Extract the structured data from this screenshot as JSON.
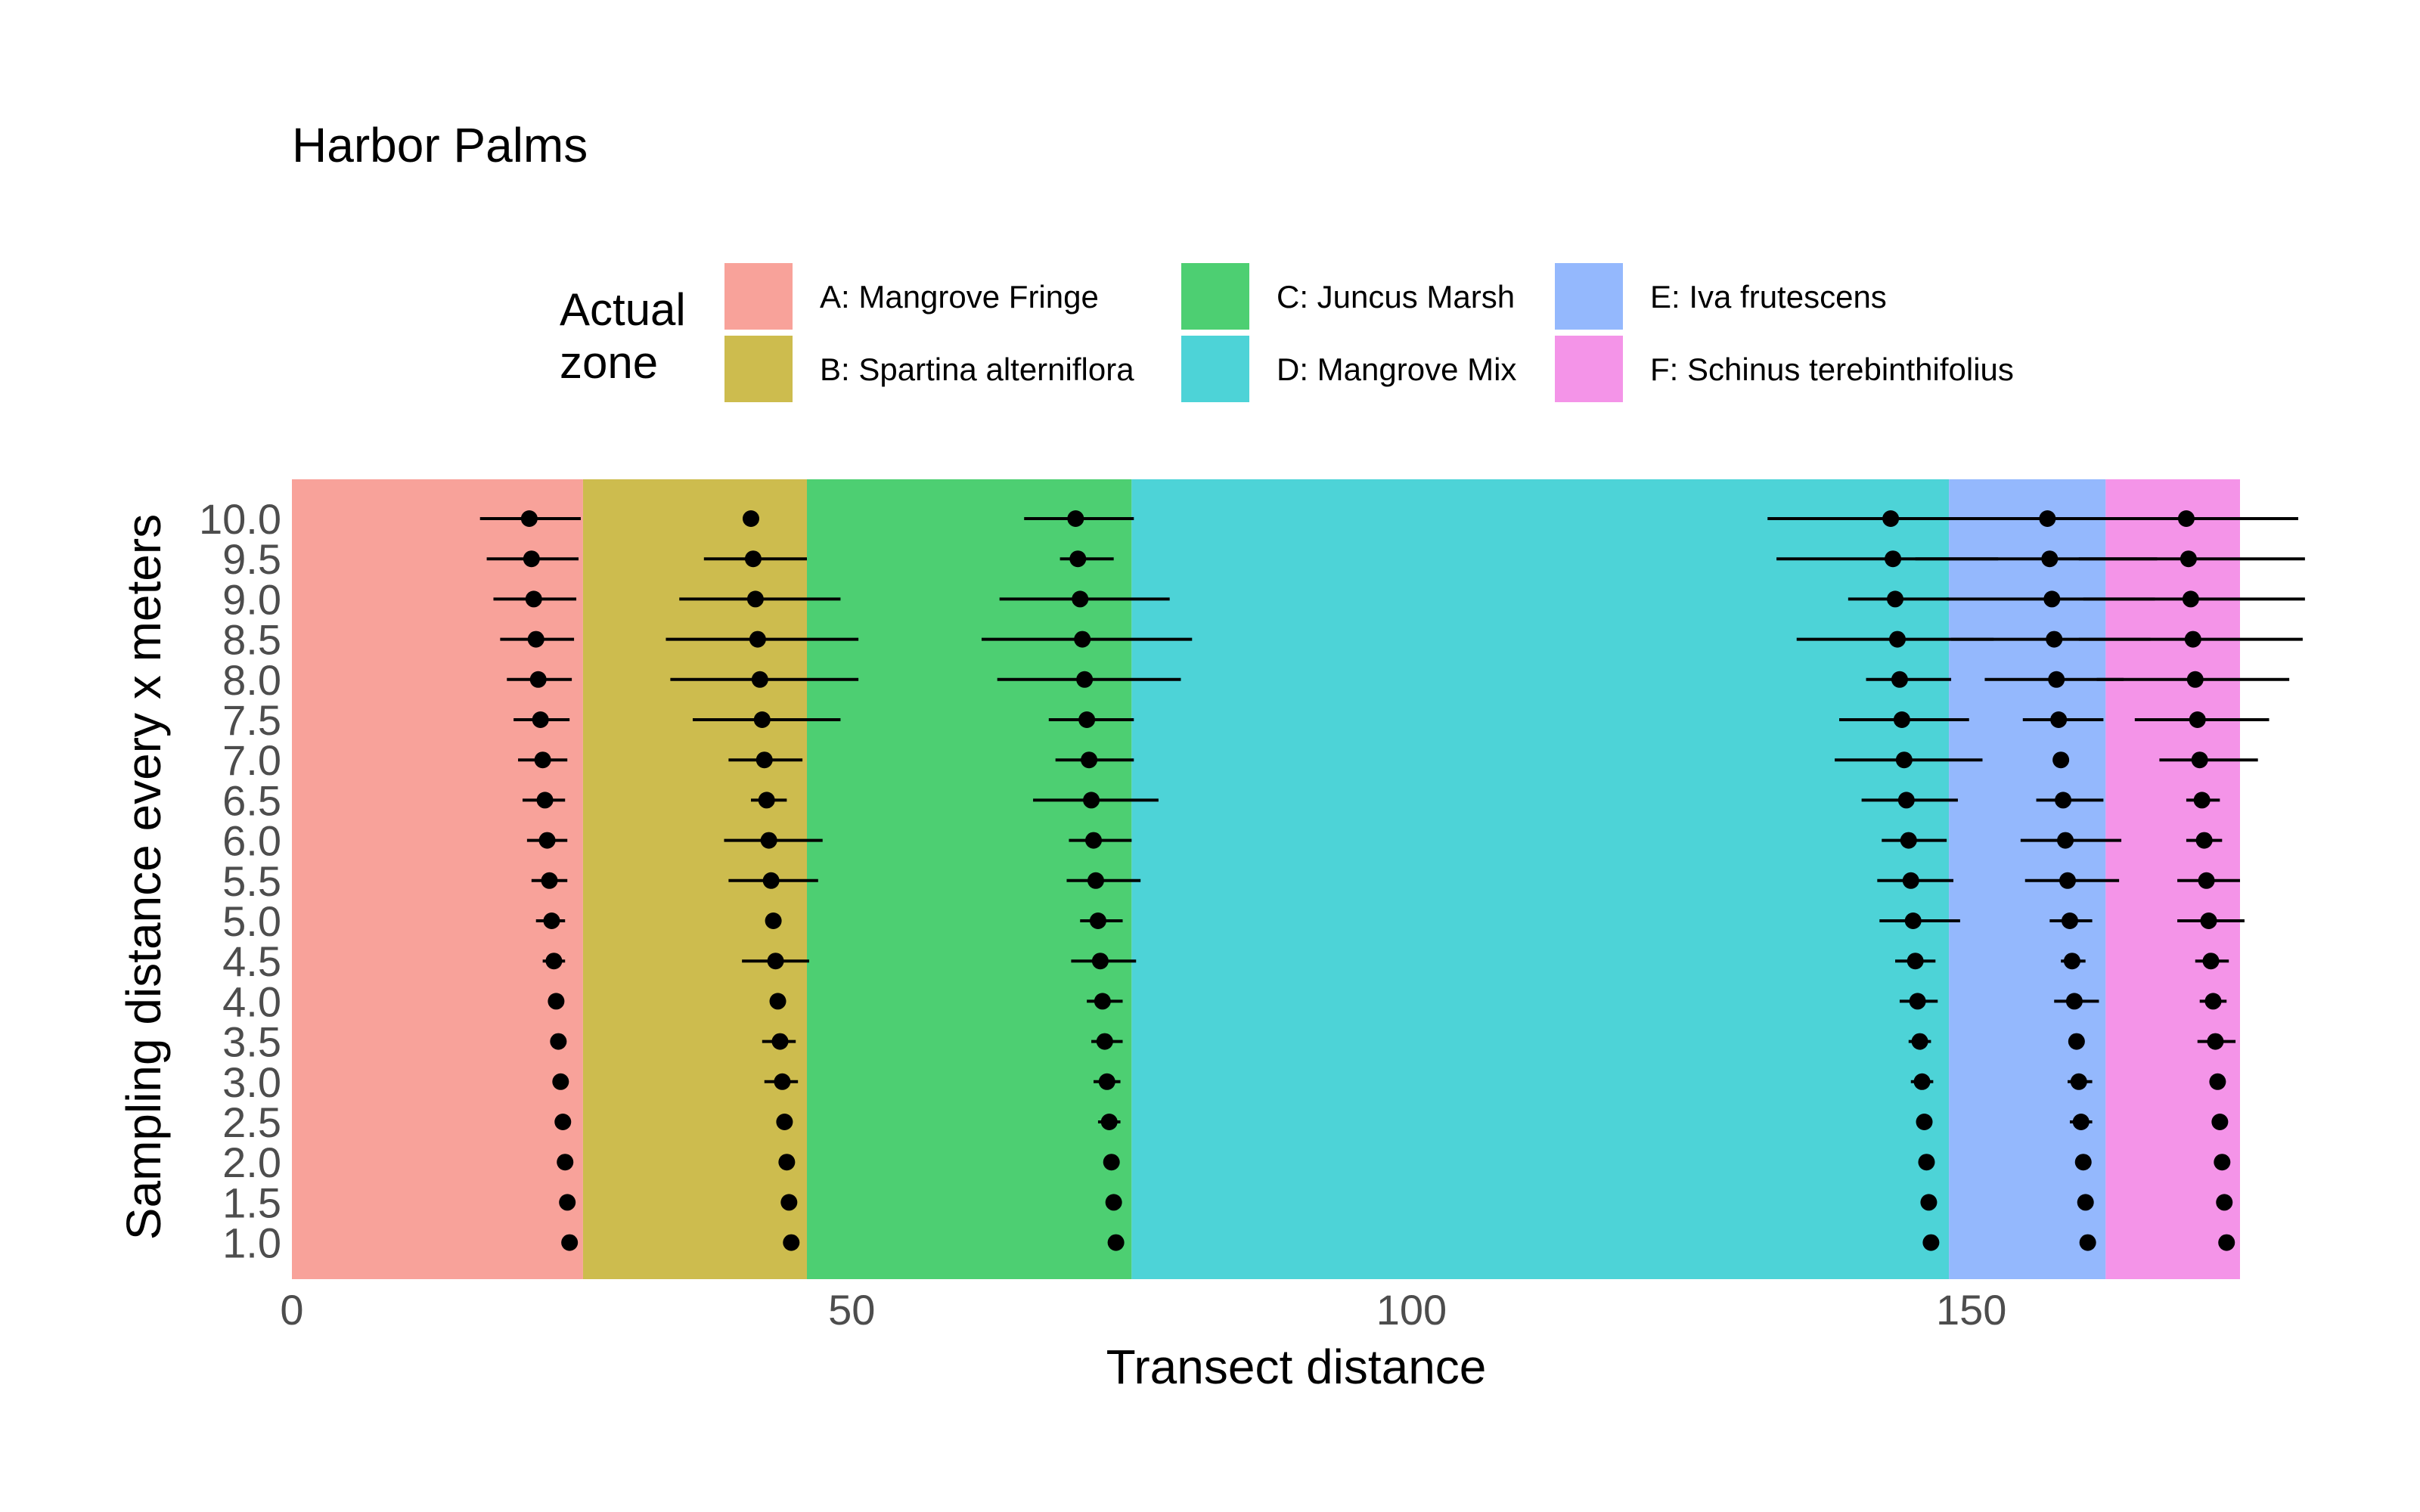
{
  "chart_data": {
    "type": "scatter",
    "title": "Harbor Palms",
    "xlabel": "Transect distance",
    "ylabel": "Sampling distance every x meters",
    "xlim": [
      0,
      174
    ],
    "x_ticks": [
      "0",
      "50",
      "100",
      "150"
    ],
    "x_tick_values": [
      0,
      50,
      100,
      150
    ],
    "y_tick_labels": [
      "1.0",
      "1.5",
      "2.0",
      "2.5",
      "3.0",
      "3.5",
      "4.0",
      "4.5",
      "5.0",
      "5.5",
      "6.0",
      "6.5",
      "7.0",
      "7.5",
      "8.0",
      "8.5",
      "9.0",
      "9.5",
      "10.0"
    ],
    "legend": {
      "title_lines": [
        "Actual",
        "zone"
      ],
      "placement": "top"
    },
    "zones": [
      {
        "label": "A: Mangrove Fringe",
        "start": 0,
        "end": 26,
        "color": "#F8A29A"
      },
      {
        "label": "B: Spartina alterniflora",
        "start": 26,
        "end": 46,
        "color": "#CDBC4E"
      },
      {
        "label": "C: Juncus Marsh",
        "start": 46,
        "end": 75,
        "color": "#4DCF72"
      },
      {
        "label": "D: Mangrove Mix",
        "start": 75,
        "end": 148,
        "color": "#4DD3D7"
      },
      {
        "label": "E: Iva frutescens",
        "start": 148,
        "end": 162,
        "color": "#94B8FD"
      },
      {
        "label": "F: Schinus terebinthifolius",
        "start": 162,
        "end": 174,
        "color": "#F494E8"
      }
    ],
    "series": [
      {
        "boundary": "A-B",
        "points": [
          {
            "y": 10.0,
            "x": 21.2,
            "lo": 16.8,
            "hi": 25.8
          },
          {
            "y": 9.5,
            "x": 21.4,
            "lo": 17.4,
            "hi": 25.6
          },
          {
            "y": 9.0,
            "x": 21.6,
            "lo": 18.0,
            "hi": 25.4
          },
          {
            "y": 8.5,
            "x": 21.8,
            "lo": 18.6,
            "hi": 25.2
          },
          {
            "y": 8.0,
            "x": 22.0,
            "lo": 19.2,
            "hi": 25.0
          },
          {
            "y": 7.5,
            "x": 22.2,
            "lo": 19.8,
            "hi": 24.8
          },
          {
            "y": 7.0,
            "x": 22.4,
            "lo": 20.2,
            "hi": 24.6
          },
          {
            "y": 6.5,
            "x": 22.6,
            "lo": 20.6,
            "hi": 24.4
          },
          {
            "y": 6.0,
            "x": 22.8,
            "lo": 21.0,
            "hi": 24.6
          },
          {
            "y": 5.5,
            "x": 23.0,
            "lo": 21.4,
            "hi": 24.6
          },
          {
            "y": 5.0,
            "x": 23.2,
            "lo": 21.8,
            "hi": 24.4
          },
          {
            "y": 4.5,
            "x": 23.4,
            "lo": 22.4,
            "hi": 24.4
          },
          {
            "y": 4.0,
            "x": 23.6
          },
          {
            "y": 3.5,
            "x": 23.8
          },
          {
            "y": 3.0,
            "x": 24.0
          },
          {
            "y": 2.5,
            "x": 24.2
          },
          {
            "y": 2.0,
            "x": 24.4
          },
          {
            "y": 1.5,
            "x": 24.6
          },
          {
            "y": 1.0,
            "x": 24.8
          }
        ]
      },
      {
        "boundary": "B-C",
        "points": [
          {
            "y": 10.0,
            "x": 41.0
          },
          {
            "y": 9.5,
            "x": 41.2,
            "lo": 36.8,
            "hi": 46.0
          },
          {
            "y": 9.0,
            "x": 41.4,
            "lo": 34.6,
            "hi": 49.0
          },
          {
            "y": 8.5,
            "x": 41.6,
            "lo": 33.4,
            "hi": 50.6
          },
          {
            "y": 8.0,
            "x": 41.8,
            "lo": 33.8,
            "hi": 50.6
          },
          {
            "y": 7.5,
            "x": 42.0,
            "lo": 35.8,
            "hi": 49.0
          },
          {
            "y": 7.0,
            "x": 42.2,
            "lo": 39.0,
            "hi": 45.6
          },
          {
            "y": 6.5,
            "x": 42.4,
            "lo": 41.0,
            "hi": 44.2
          },
          {
            "y": 6.0,
            "x": 42.6,
            "lo": 38.6,
            "hi": 47.4
          },
          {
            "y": 5.5,
            "x": 42.8,
            "lo": 39.0,
            "hi": 47.0
          },
          {
            "y": 5.0,
            "x": 43.0
          },
          {
            "y": 4.5,
            "x": 43.2,
            "lo": 40.2,
            "hi": 46.2
          },
          {
            "y": 4.0,
            "x": 43.4
          },
          {
            "y": 3.5,
            "x": 43.6,
            "lo": 42.0,
            "hi": 45.0
          },
          {
            "y": 3.0,
            "x": 43.8,
            "lo": 42.2,
            "hi": 45.2
          },
          {
            "y": 2.5,
            "x": 44.0
          },
          {
            "y": 2.0,
            "x": 44.2
          },
          {
            "y": 1.5,
            "x": 44.4
          },
          {
            "y": 1.0,
            "x": 44.6
          }
        ]
      },
      {
        "boundary": "C-D",
        "points": [
          {
            "y": 10.0,
            "x": 70.0,
            "lo": 65.4,
            "hi": 75.2
          },
          {
            "y": 9.5,
            "x": 70.2,
            "lo": 68.6,
            "hi": 73.4
          },
          {
            "y": 9.0,
            "x": 70.4,
            "lo": 63.2,
            "hi": 78.4
          },
          {
            "y": 8.5,
            "x": 70.6,
            "lo": 61.6,
            "hi": 80.4
          },
          {
            "y": 8.0,
            "x": 70.8,
            "lo": 63.0,
            "hi": 79.4
          },
          {
            "y": 7.5,
            "x": 71.0,
            "lo": 67.6,
            "hi": 75.2
          },
          {
            "y": 7.0,
            "x": 71.2,
            "lo": 68.2,
            "hi": 75.2
          },
          {
            "y": 6.5,
            "x": 71.4,
            "lo": 66.2,
            "hi": 77.4
          },
          {
            "y": 6.0,
            "x": 71.6,
            "lo": 69.4,
            "hi": 75.0
          },
          {
            "y": 5.5,
            "x": 71.8,
            "lo": 69.2,
            "hi": 75.8
          },
          {
            "y": 5.0,
            "x": 72.0,
            "lo": 70.4,
            "hi": 74.2
          },
          {
            "y": 4.5,
            "x": 72.2,
            "lo": 69.6,
            "hi": 75.4
          },
          {
            "y": 4.0,
            "x": 72.4,
            "lo": 71.0,
            "hi": 74.2
          },
          {
            "y": 3.5,
            "x": 72.6,
            "lo": 71.4,
            "hi": 74.2
          },
          {
            "y": 3.0,
            "x": 72.8,
            "lo": 71.6,
            "hi": 74.0
          },
          {
            "y": 2.5,
            "x": 73.0,
            "lo": 72.0,
            "hi": 74.0
          },
          {
            "y": 2.0,
            "x": 73.2
          },
          {
            "y": 1.5,
            "x": 73.4
          },
          {
            "y": 1.0,
            "x": 73.6
          }
        ]
      },
      {
        "boundary": "D-E",
        "points": [
          {
            "y": 10.0,
            "x": 142.8,
            "lo": 131.8,
            "hi": 152.8
          },
          {
            "y": 9.5,
            "x": 143.0,
            "lo": 132.6,
            "hi": 152.4
          },
          {
            "y": 9.0,
            "x": 143.2,
            "lo": 139.0,
            "hi": 148.0
          },
          {
            "y": 8.5,
            "x": 143.4,
            "lo": 134.4,
            "hi": 152.0
          },
          {
            "y": 8.0,
            "x": 143.6,
            "lo": 140.6,
            "hi": 148.2
          },
          {
            "y": 7.5,
            "x": 143.8,
            "lo": 138.2,
            "hi": 149.8
          },
          {
            "y": 7.0,
            "x": 144.0,
            "lo": 137.8,
            "hi": 151.0
          },
          {
            "y": 6.5,
            "x": 144.2,
            "lo": 140.2,
            "hi": 148.8
          },
          {
            "y": 6.0,
            "x": 144.4,
            "lo": 142.0,
            "hi": 147.8
          },
          {
            "y": 5.5,
            "x": 144.6,
            "lo": 141.6,
            "hi": 148.4
          },
          {
            "y": 5.0,
            "x": 144.8,
            "lo": 141.8,
            "hi": 149.0
          },
          {
            "y": 4.5,
            "x": 145.0,
            "lo": 143.2,
            "hi": 146.8
          },
          {
            "y": 4.0,
            "x": 145.2,
            "lo": 143.6,
            "hi": 147.0
          },
          {
            "y": 3.5,
            "x": 145.4,
            "lo": 144.4,
            "hi": 146.4
          },
          {
            "y": 3.0,
            "x": 145.6,
            "lo": 144.6,
            "hi": 146.6
          },
          {
            "y": 2.5,
            "x": 145.8
          },
          {
            "y": 2.0,
            "x": 146.0
          },
          {
            "y": 1.5,
            "x": 146.2
          },
          {
            "y": 1.0,
            "x": 146.4
          }
        ]
      },
      {
        "boundary": "E-F",
        "points": [
          {
            "y": 10.0,
            "x": 156.8,
            "lo": 143.4,
            "hi": 166.8
          },
          {
            "y": 9.5,
            "x": 157.0,
            "lo": 145.0,
            "hi": 166.6
          },
          {
            "y": 9.0,
            "x": 157.2,
            "lo": 147.8,
            "hi": 166.4
          },
          {
            "y": 8.5,
            "x": 157.4,
            "lo": 148.2,
            "hi": 166.0
          },
          {
            "y": 8.0,
            "x": 157.6,
            "lo": 151.2,
            "hi": 163.6
          },
          {
            "y": 7.5,
            "x": 157.8,
            "lo": 154.6,
            "hi": 161.8
          },
          {
            "y": 7.0,
            "x": 158.0
          },
          {
            "y": 6.5,
            "x": 158.2,
            "lo": 155.8,
            "hi": 161.8
          },
          {
            "y": 6.0,
            "x": 158.4,
            "lo": 154.4,
            "hi": 163.4
          },
          {
            "y": 5.5,
            "x": 158.6,
            "lo": 154.8,
            "hi": 163.2
          },
          {
            "y": 5.0,
            "x": 158.8,
            "lo": 157.0,
            "hi": 160.8
          },
          {
            "y": 4.5,
            "x": 159.0,
            "lo": 158.0,
            "hi": 160.2
          },
          {
            "y": 4.0,
            "x": 159.2,
            "lo": 157.4,
            "hi": 161.4
          },
          {
            "y": 3.5,
            "x": 159.4
          },
          {
            "y": 3.0,
            "x": 159.6,
            "lo": 158.6,
            "hi": 160.8
          },
          {
            "y": 2.5,
            "x": 159.8,
            "lo": 158.8,
            "hi": 160.8
          },
          {
            "y": 2.0,
            "x": 160.0
          },
          {
            "y": 1.5,
            "x": 160.2
          },
          {
            "y": 1.0,
            "x": 160.4
          }
        ]
      },
      {
        "boundary": "F-end",
        "points": [
          {
            "y": 10.0,
            "x": 169.2,
            "lo": 159.2,
            "hi": 179.2
          },
          {
            "y": 9.5,
            "x": 169.4,
            "lo": 159.6,
            "hi": 179.8
          },
          {
            "y": 9.0,
            "x": 169.6,
            "lo": 160.0,
            "hi": 179.8
          },
          {
            "y": 8.5,
            "x": 169.8,
            "lo": 159.6,
            "hi": 179.6
          },
          {
            "y": 8.0,
            "x": 170.0,
            "lo": 161.2,
            "hi": 178.4
          },
          {
            "y": 7.5,
            "x": 170.2,
            "lo": 164.6,
            "hi": 176.6
          },
          {
            "y": 7.0,
            "x": 170.4,
            "lo": 166.8,
            "hi": 175.6
          },
          {
            "y": 6.5,
            "x": 170.6,
            "lo": 169.2,
            "hi": 172.2
          },
          {
            "y": 6.0,
            "x": 170.8,
            "lo": 169.2,
            "hi": 172.4
          },
          {
            "y": 5.5,
            "x": 171.0,
            "lo": 168.4,
            "hi": 174.0
          },
          {
            "y": 5.0,
            "x": 171.2,
            "lo": 168.4,
            "hi": 174.4
          },
          {
            "y": 4.5,
            "x": 171.4,
            "lo": 170.0,
            "hi": 173.0
          },
          {
            "y": 4.0,
            "x": 171.6,
            "lo": 170.4,
            "hi": 172.8
          },
          {
            "y": 3.5,
            "x": 171.8,
            "lo": 170.2,
            "hi": 173.6
          },
          {
            "y": 3.0,
            "x": 172.0
          },
          {
            "y": 2.5,
            "x": 172.2
          },
          {
            "y": 2.0,
            "x": 172.4
          },
          {
            "y": 1.5,
            "x": 172.6
          },
          {
            "y": 1.0,
            "x": 172.8
          }
        ]
      }
    ]
  }
}
